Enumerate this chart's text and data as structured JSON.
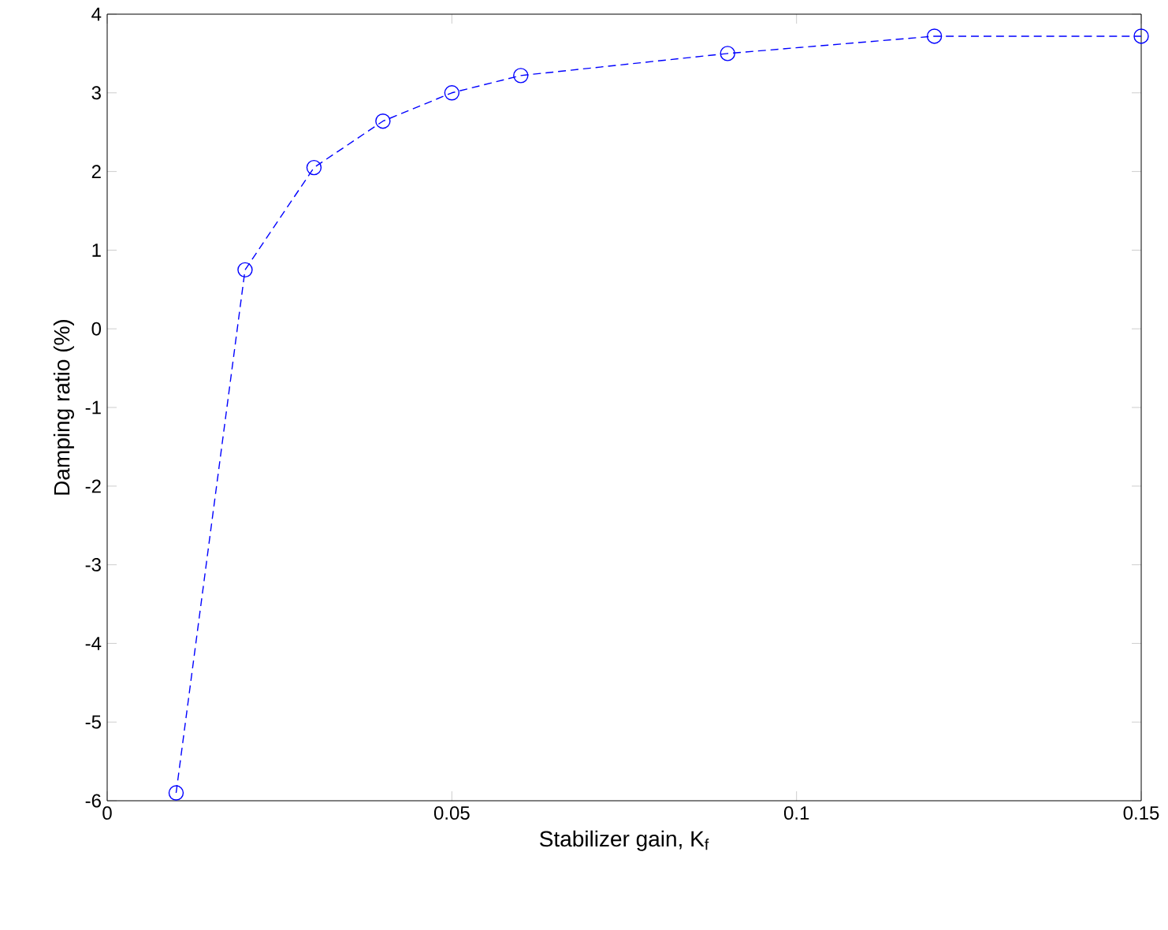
{
  "chart_data": {
    "type": "line",
    "xlabel": "Stabilizer gain, K$_{f}$",
    "ylabel": "Damping ratio (%)",
    "x": [
      0.01,
      0.02,
      0.03,
      0.04,
      0.05,
      0.06,
      0.09,
      0.12,
      0.15
    ],
    "series": [
      {
        "color": "#0000ff",
        "values": [
          -5.9,
          0.75,
          2.05,
          2.64,
          3.0,
          3.22,
          3.5,
          3.72,
          3.72
        ]
      }
    ],
    "xlim": [
      0,
      0.15
    ],
    "ylim": [
      -6,
      4
    ],
    "xticks": [
      0,
      0.05,
      0.1,
      0.15
    ],
    "yticks": [
      -6,
      -5,
      -4,
      -3,
      -2,
      -1,
      0,
      1,
      2,
      3,
      4
    ],
    "marker": "circle",
    "line_style": "dashed",
    "grid": false
  }
}
